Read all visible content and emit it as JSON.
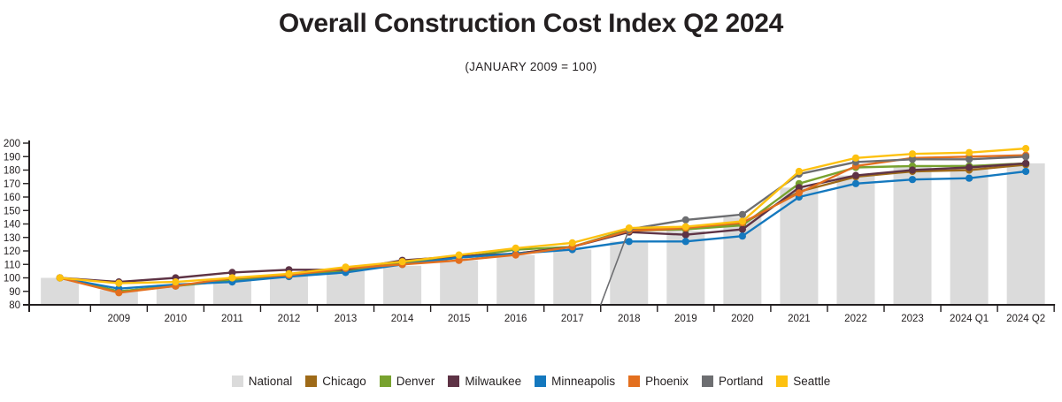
{
  "header": {
    "title": "Overall Construction Cost Index Q2 2024",
    "subtitle": "(JANUARY 2009 = 100)"
  },
  "chart_data": {
    "type": "bar+line",
    "title": "Overall Construction Cost Index Q2 2024",
    "subtitle": "(JANUARY 2009 = 100)",
    "categories": [
      "",
      "2009",
      "2010",
      "2011",
      "2012",
      "2013",
      "2014",
      "2015",
      "2016",
      "2017",
      "2018",
      "2019",
      "2020",
      "2021",
      "2022",
      "2023",
      "2024 Q1",
      "2024 Q2"
    ],
    "baseline_note": "first unlabeled column is the January 2009 baseline = 100",
    "ylim": [
      80,
      200
    ],
    "ytick_step": 10,
    "grid": "off",
    "legend_position": "bottom-center",
    "bar_series": {
      "name": "National",
      "color": "#DBDBDB",
      "values": [
        100,
        91,
        95,
        98,
        102,
        105,
        109,
        113,
        117,
        121,
        127,
        135,
        145,
        167,
        176,
        183,
        184,
        185
      ]
    },
    "line_series": [
      {
        "name": "Chicago",
        "color": "#9E6A18",
        "values": [
          100,
          90,
          94,
          99,
          102,
          106,
          111,
          115,
          118,
          123,
          135,
          136,
          140,
          164,
          175,
          179,
          180,
          184
        ]
      },
      {
        "name": "Denver",
        "color": "#78A22F",
        "values": [
          100,
          90,
          94,
          98,
          101,
          105,
          111,
          115,
          121,
          123,
          136,
          136,
          139,
          170,
          182,
          183,
          183,
          185
        ]
      },
      {
        "name": "Milwaukee",
        "color": "#5E3345",
        "values": [
          100,
          97,
          100,
          104,
          106,
          106,
          113,
          116,
          118,
          123,
          134,
          132,
          136,
          167,
          176,
          180,
          182,
          185
        ]
      },
      {
        "name": "Minneapolis",
        "color": "#1478BE",
        "values": [
          100,
          92,
          95,
          97,
          101,
          104,
          110,
          115,
          118,
          121,
          127,
          127,
          131,
          160,
          170,
          173,
          174,
          179
        ]
      },
      {
        "name": "Phoenix",
        "color": "#E36F1E",
        "values": [
          100,
          89,
          94,
          100,
          102,
          107,
          110,
          113,
          117,
          123,
          135,
          137,
          141,
          163,
          183,
          189,
          190,
          191
        ]
      },
      {
        "name": "Portland",
        "color": "#6D6E71",
        "values": [
          null,
          null,
          null,
          null,
          null,
          null,
          null,
          null,
          null,
          null,
          136,
          143,
          147,
          177,
          186,
          188,
          188,
          190
        ],
        "lead_in_from_axis": true
      },
      {
        "name": "Seattle",
        "color": "#FDC110",
        "values": [
          100,
          96,
          97,
          100,
          103,
          108,
          112,
          117,
          122,
          126,
          137,
          138,
          142,
          179,
          189,
          192,
          193,
          196
        ]
      }
    ]
  },
  "legend": {
    "items": [
      {
        "label": "National",
        "color": "#DBDBDB"
      },
      {
        "label": "Chicago",
        "color": "#9E6A18"
      },
      {
        "label": "Denver",
        "color": "#78A22F"
      },
      {
        "label": "Milwaukee",
        "color": "#5E3345"
      },
      {
        "label": "Minneapolis",
        "color": "#1478BE"
      },
      {
        "label": "Phoenix",
        "color": "#E36F1E"
      },
      {
        "label": "Portland",
        "color": "#6D6E71"
      },
      {
        "label": "Seattle",
        "color": "#FDC110"
      }
    ]
  }
}
